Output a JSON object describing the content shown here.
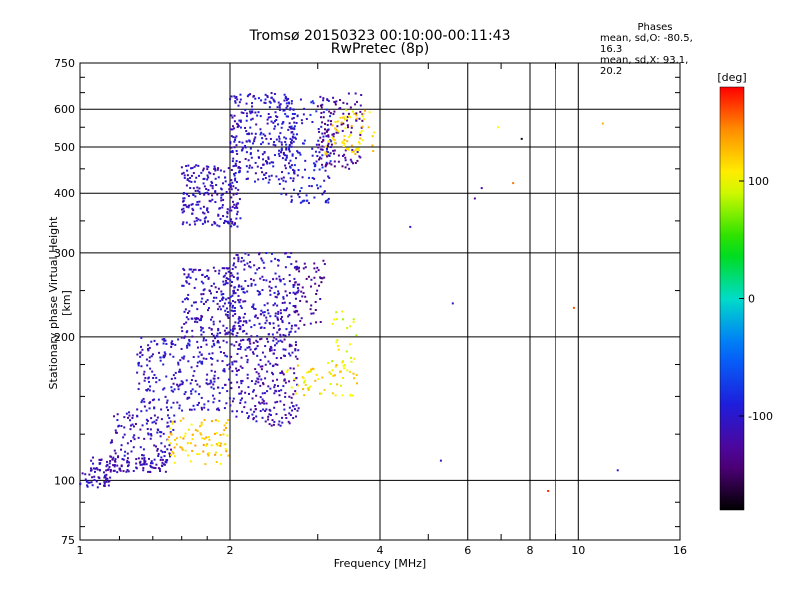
{
  "chart_data": {
    "type": "scatter",
    "title": "Tromsø 20150323 00:10:00-00:11:43",
    "subtitle": "RwPretec (8p)",
    "xlabel": "Frequency [MHz]",
    "ylabel": "Stationary phase Virtual Height [km]",
    "x_scale": "log",
    "y_scale": "log",
    "xlim": [
      1,
      16
    ],
    "ylim": [
      75,
      750
    ],
    "x_ticks": [
      1,
      2,
      4,
      6,
      8,
      10,
      16
    ],
    "y_ticks": [
      75,
      100,
      200,
      300,
      400,
      500,
      600,
      750
    ],
    "grid": true,
    "stats": {
      "header": "Phases",
      "line1": "mean, sd,O: -80.5, 16.3",
      "line2": "mean, sd,X:  93.1, 20.2"
    },
    "colorbar": {
      "label": "[deg]",
      "range": [
        -180,
        180
      ],
      "ticks": [
        100,
        0,
        -100
      ]
    },
    "clusters": [
      {
        "x": [
          1.0,
          1.15
        ],
        "y": [
          96,
          104
        ],
        "phase": -110,
        "n": 40
      },
      {
        "x": [
          1.05,
          1.5
        ],
        "y": [
          104,
          112
        ],
        "phase": -115,
        "n": 120
      },
      {
        "x": [
          1.15,
          1.55
        ],
        "y": [
          112,
          140
        ],
        "phase": -110,
        "n": 110
      },
      {
        "x": [
          1.5,
          2.0
        ],
        "y": [
          108,
          135
        ],
        "phase": 120,
        "n": 90
      },
      {
        "x": [
          1.3,
          2.0
        ],
        "y": [
          140,
          200
        ],
        "phase": -105,
        "n": 260
      },
      {
        "x": [
          1.6,
          2.1
        ],
        "y": [
          200,
          280
        ],
        "phase": -110,
        "n": 200
      },
      {
        "x": [
          2.0,
          2.75
        ],
        "y": [
          130,
          200
        ],
        "phase": -115,
        "n": 260
      },
      {
        "x": [
          2.0,
          2.75
        ],
        "y": [
          200,
          300
        ],
        "phase": -108,
        "n": 240
      },
      {
        "x": [
          2.6,
          3.6
        ],
        "y": [
          150,
          180
        ],
        "phase": 110,
        "n": 60
      },
      {
        "x": [
          2.7,
          3.1
        ],
        "y": [
          210,
          290
        ],
        "phase": -130,
        "n": 60
      },
      {
        "x": [
          3.2,
          3.6
        ],
        "y": [
          170,
          230
        ],
        "phase": 95,
        "n": 25
      },
      {
        "x": [
          1.6,
          2.1
        ],
        "y": [
          340,
          460
        ],
        "phase": -110,
        "n": 220
      },
      {
        "x": [
          2.0,
          2.7
        ],
        "y": [
          420,
          650
        ],
        "phase": -105,
        "n": 280
      },
      {
        "x": [
          2.5,
          3.2
        ],
        "y": [
          380,
          640
        ],
        "phase": -95,
        "n": 170
      },
      {
        "x": [
          3.0,
          3.7
        ],
        "y": [
          450,
          650
        ],
        "phase": -130,
        "n": 120
      },
      {
        "x": [
          3.1,
          3.9
        ],
        "y": [
          480,
          600
        ],
        "phase": 115,
        "n": 70
      }
    ],
    "sparse_points": [
      {
        "x": 4.6,
        "y": 340,
        "phase": -100
      },
      {
        "x": 5.3,
        "y": 110,
        "phase": -105
      },
      {
        "x": 5.6,
        "y": 235,
        "phase": -110
      },
      {
        "x": 6.2,
        "y": 390,
        "phase": -130
      },
      {
        "x": 6.4,
        "y": 410,
        "phase": -115
      },
      {
        "x": 6.9,
        "y": 550,
        "phase": 100
      },
      {
        "x": 7.4,
        "y": 420,
        "phase": 150
      },
      {
        "x": 7.7,
        "y": 520,
        "phase": -170
      },
      {
        "x": 8.7,
        "y": 95,
        "phase": 170
      },
      {
        "x": 9.8,
        "y": 230,
        "phase": 160
      },
      {
        "x": 11.2,
        "y": 560,
        "phase": 130
      },
      {
        "x": 12.0,
        "y": 105,
        "phase": -100
      }
    ]
  }
}
